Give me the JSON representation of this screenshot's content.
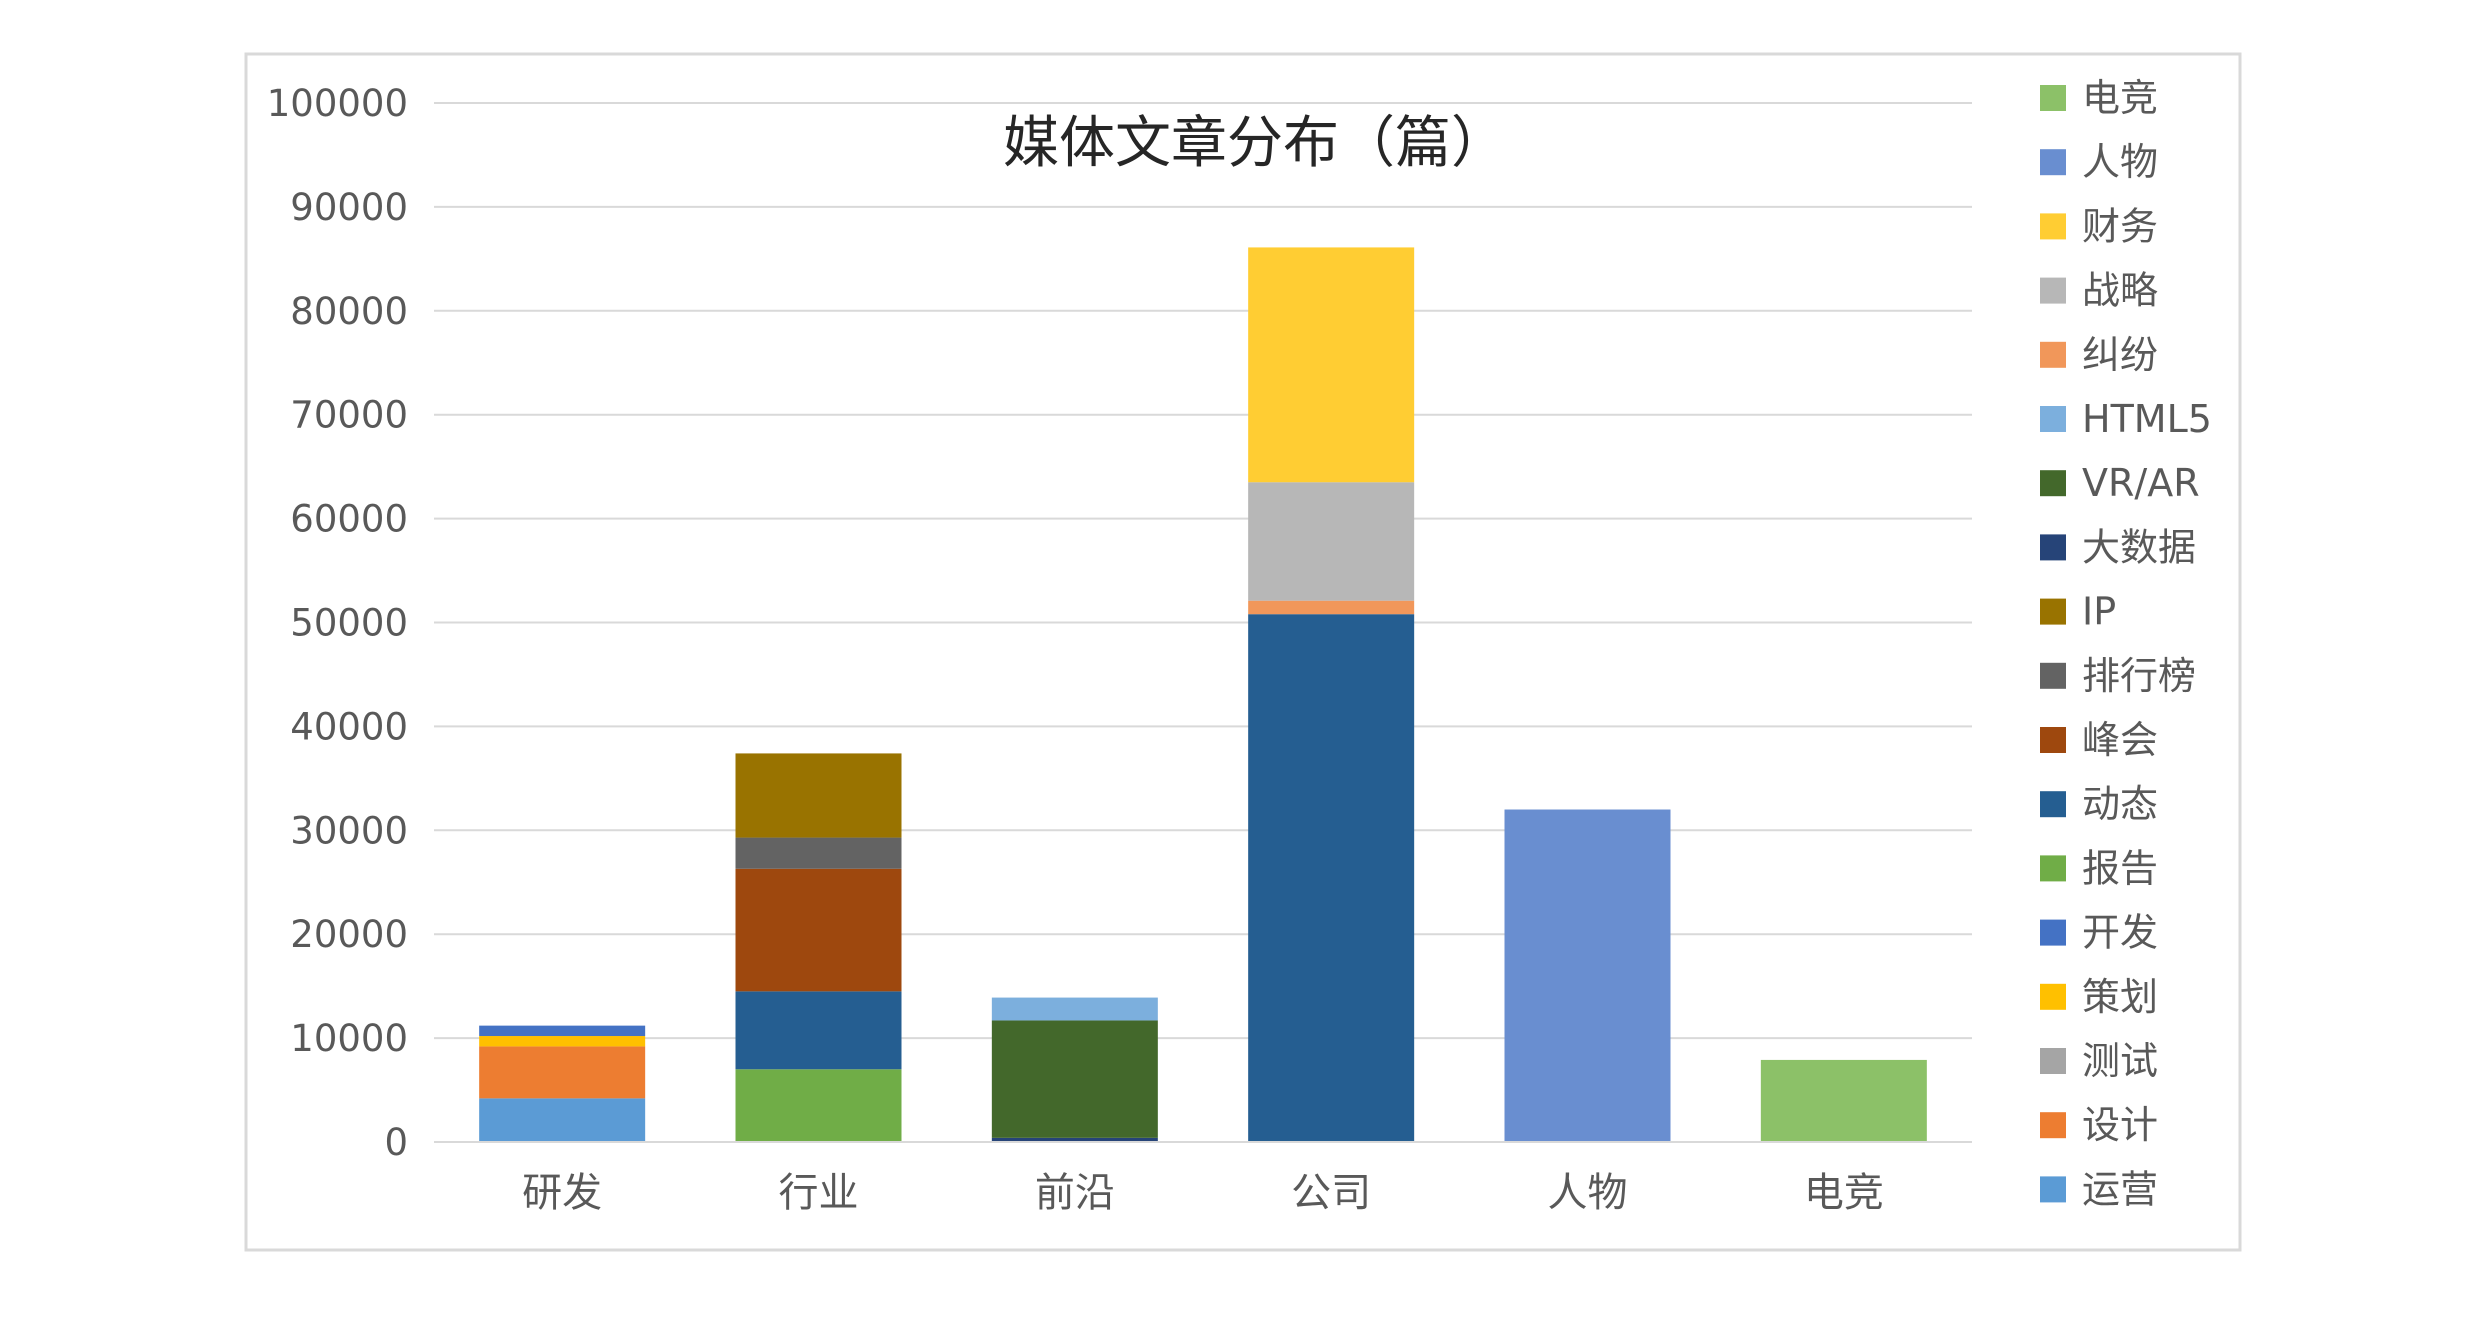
{
  "chart_data": {
    "type": "bar",
    "stacked": true,
    "title": "媒体文章分布（篇）",
    "xlabel": "",
    "ylabel": "",
    "ylim": [
      0,
      100000
    ],
    "yticks": [
      0,
      10000,
      20000,
      30000,
      40000,
      50000,
      60000,
      70000,
      80000,
      90000,
      100000
    ],
    "grid": true,
    "legend_position": "right",
    "categories": [
      "研发",
      "行业",
      "前沿",
      "公司",
      "人物",
      "电竞"
    ],
    "series": [
      {
        "name": "运营",
        "color": "#5b9bd5",
        "values": [
          4200,
          0,
          0,
          0,
          0,
          0
        ]
      },
      {
        "name": "设计",
        "color": "#ed7d31",
        "values": [
          5000,
          0,
          0,
          0,
          0,
          0
        ]
      },
      {
        "name": "测试",
        "color": "#a5a5a5",
        "values": [
          0,
          0,
          0,
          0,
          0,
          0
        ]
      },
      {
        "name": "策划",
        "color": "#ffc000",
        "values": [
          1000,
          0,
          0,
          0,
          0,
          0
        ]
      },
      {
        "name": "开发",
        "color": "#4472c4",
        "values": [
          1000,
          0,
          0,
          0,
          0,
          0
        ]
      },
      {
        "name": "报告",
        "color": "#70ad47",
        "values": [
          0,
          7000,
          0,
          0,
          0,
          0
        ]
      },
      {
        "name": "动态",
        "color": "#255e91",
        "values": [
          0,
          7500,
          0,
          50800,
          0,
          0
        ]
      },
      {
        "name": "峰会",
        "color": "#9e480e",
        "values": [
          0,
          11800,
          0,
          0,
          0,
          0
        ]
      },
      {
        "name": "排行榜",
        "color": "#636363",
        "values": [
          0,
          3000,
          0,
          0,
          0,
          0
        ]
      },
      {
        "name": "IP",
        "color": "#997300",
        "values": [
          0,
          8100,
          0,
          0,
          0,
          0
        ]
      },
      {
        "name": "大数据",
        "color": "#264478",
        "values": [
          0,
          0,
          400,
          0,
          0,
          0
        ]
      },
      {
        "name": "VR/AR",
        "color": "#43682b",
        "values": [
          0,
          0,
          11300,
          0,
          0,
          0
        ]
      },
      {
        "name": "HTML5",
        "color": "#7cafdd",
        "values": [
          0,
          0,
          2200,
          0,
          0,
          0
        ]
      },
      {
        "name": "纠纷",
        "color": "#f1975a",
        "values": [
          0,
          0,
          0,
          1300,
          0,
          0
        ]
      },
      {
        "name": "战略",
        "color": "#b7b7b7",
        "values": [
          0,
          0,
          0,
          11400,
          0,
          0
        ]
      },
      {
        "name": "财务",
        "color": "#ffcd33",
        "values": [
          0,
          0,
          0,
          22600,
          0,
          0
        ]
      },
      {
        "name": "人物",
        "color": "#698ed0",
        "values": [
          0,
          0,
          0,
          0,
          32000,
          0
        ]
      },
      {
        "name": "电竞",
        "color": "#8cc168",
        "values": [
          0,
          0,
          0,
          0,
          0,
          7900
        ]
      }
    ]
  }
}
